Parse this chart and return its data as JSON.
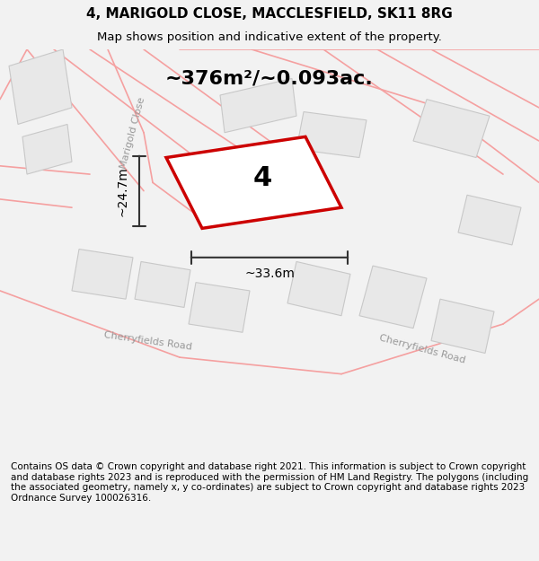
{
  "title": "4, MARIGOLD CLOSE, MACCLESFIELD, SK11 8RG",
  "subtitle": "Map shows position and indicative extent of the property.",
  "area_label": "~376m²/~0.093ac.",
  "property_number": "4",
  "dim_width": "~33.6m",
  "dim_height": "~24.7m",
  "footer": "Contains OS data © Crown copyright and database right 2021. This information is subject to Crown copyright and database rights 2023 and is reproduced with the permission of HM Land Registry. The polygons (including the associated geometry, namely x, y co-ordinates) are subject to Crown copyright and database rights 2023 Ordnance Survey 100026316.",
  "bg_color": "#f2f2f2",
  "map_bg": "#f7f7f7",
  "plot_outline_color": "#cc0000",
  "plot_fill_color": "#ffffff",
  "building_color": "#e0e0e0",
  "road_line_color": "#f5a0a0",
  "road_label_color": "#aaaaaa",
  "dim_line_color": "#333333",
  "title_fontsize": 11,
  "subtitle_fontsize": 9.5,
  "area_fontsize": 16,
  "number_fontsize": 22,
  "dim_fontsize": 10,
  "footer_fontsize": 7.5
}
